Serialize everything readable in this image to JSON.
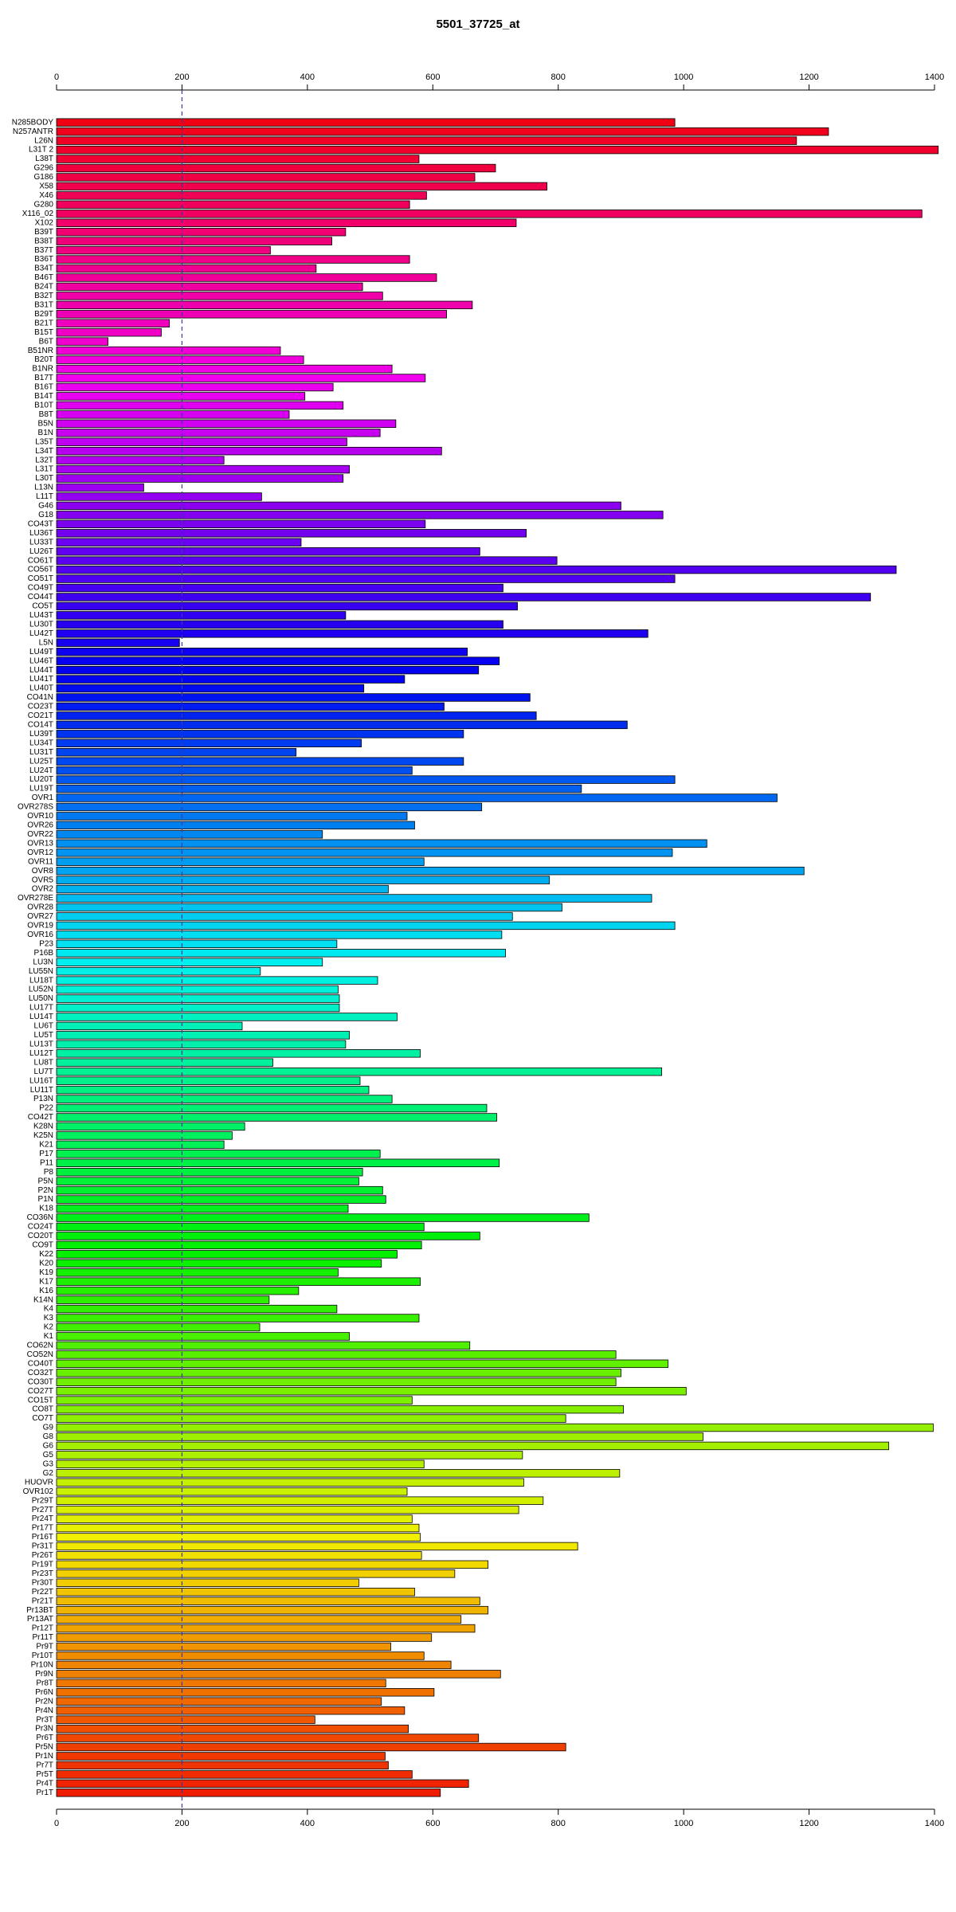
{
  "chart_data": {
    "type": "bar",
    "orientation": "horizontal",
    "title": "5501_37725_at",
    "categories": [
      "N285BODY",
      "N257ANTR",
      "L26N",
      "L31T 2",
      "L38T",
      "G296",
      "G186",
      "X58",
      "X46",
      "G280",
      "X116_02",
      "X102",
      "B39T",
      "B38T",
      "B37T",
      "B36T",
      "B34T",
      "B46T",
      "B24T",
      "B32T",
      "B31T",
      "B29T",
      "B21T",
      "B15T",
      "B6T",
      "B51NR",
      "B20T",
      "B1NR",
      "B17T",
      "B16T",
      "B14T",
      "B10T",
      "B8T",
      "B5N",
      "B1N",
      "L35T",
      "L34T",
      "L32T",
      "L31T",
      "L30T",
      "L13N",
      "L11T",
      "G46",
      "G18",
      "CO43T",
      "LU36T",
      "LU33T",
      "LU26T",
      "CO61T",
      "CO56T",
      "CO51T",
      "CO49T",
      "CO44T",
      "CO5T",
      "LU43T",
      "LU30T",
      "LU42T",
      "L5N",
      "LU49T",
      "LU46T",
      "LU44T",
      "LU41T",
      "LU40T",
      "CO41N",
      "CO23T",
      "CO21T",
      "CO14T",
      "LU39T",
      "LU34T",
      "LU31T",
      "LU25T",
      "LU24T",
      "LU20T",
      "LU19T",
      "OVR1",
      "OVR278S",
      "OVR10",
      "OVR26",
      "OVR22",
      "OVR13",
      "OVR12",
      "OVR11",
      "OVR8",
      "OVR5",
      "OVR2",
      "OVR278E",
      "OVR28",
      "OVR27",
      "OVR19",
      "OVR16",
      "P23",
      "P16B",
      "LU3N",
      "LU55N",
      "LU18T",
      "LU52N",
      "LU50N",
      "LU17T",
      "LU14T",
      "LU6T",
      "LU5T",
      "LU13T",
      "LU12T",
      "LU8T",
      "LU7T",
      "LU16T",
      "LU11T",
      "P13N",
      "P22",
      "CO42T",
      "K28N",
      "K25N",
      "K21",
      "P17",
      "P11",
      "P8",
      "P5N",
      "P2N",
      "P1N",
      "K18",
      "CO36N",
      "CO24T",
      "CO20T",
      "CO9T",
      "K22",
      "K20",
      "K19",
      "K17",
      "K16",
      "K14N",
      "K4",
      "K3",
      "K2",
      "K1",
      "CO62N",
      "CO52N",
      "CO40T",
      "CO32T",
      "CO30T",
      "CO27T",
      "CO15T",
      "CO8T",
      "CO7T",
      "G9",
      "G8",
      "G6",
      "G5",
      "G3",
      "G2",
      "HUOVR",
      "OVR102",
      "Pr29T",
      "Pr27T",
      "Pr24T",
      "Pr17T",
      "Pr16T",
      "Pr31T",
      "Pr26T",
      "Pr19T",
      "Pr23T",
      "Pr30T",
      "Pr22T",
      "Pr21T",
      "Pr13BT",
      "Pr13AT",
      "Pr12T",
      "Pr11T",
      "Pr9T",
      "Pr10T",
      "Pr10N",
      "Pr9N",
      "Pr8T",
      "Pr6N",
      "Pr2N",
      "Pr4N",
      "Pr3T",
      "Pr3N",
      "Pr6T",
      "Pr5N",
      "Pr1N",
      "Pr7T",
      "Pr5T",
      "Pr4T",
      "Pr1T"
    ],
    "values": [
      986,
      1231,
      1180,
      1406,
      578,
      700,
      667,
      782,
      590,
      563,
      1380,
      733,
      461,
      439,
      341,
      563,
      414,
      606,
      488,
      520,
      663,
      622,
      180,
      167,
      82,
      357,
      394,
      535,
      588,
      441,
      396,
      457,
      371,
      541,
      516,
      463,
      614,
      267,
      467,
      457,
      139,
      327,
      900,
      967,
      588,
      749,
      390,
      675,
      798,
      1339,
      986,
      712,
      1298,
      735,
      461,
      712,
      943,
      196,
      655,
      706,
      673,
      555,
      490,
      755,
      618,
      765,
      910,
      649,
      486,
      382,
      649,
      567,
      986,
      837,
      1149,
      678,
      559,
      571,
      424,
      1037,
      982,
      586,
      1192,
      786,
      529,
      949,
      806,
      727,
      986,
      710,
      447,
      716,
      424,
      325,
      512,
      449,
      451,
      451,
      543,
      296,
      467,
      461,
      580,
      345,
      965,
      484,
      498,
      535,
      686,
      702,
      300,
      280,
      267,
      516,
      706,
      488,
      482,
      520,
      525,
      465,
      849,
      586,
      675,
      582,
      543,
      518,
      449,
      580,
      386,
      339,
      447,
      578,
      324,
      467,
      659,
      892,
      975,
      900,
      892,
      1004,
      567,
      904,
      812,
      1398,
      1031,
      1327,
      743,
      586,
      898,
      745,
      559,
      776,
      737,
      567,
      578,
      580,
      831,
      582,
      688,
      635,
      482,
      571,
      675,
      688,
      645,
      667,
      598,
      533,
      586,
      629,
      708,
      525,
      602,
      518,
      555,
      412,
      561,
      673,
      812,
      524,
      529,
      567,
      657,
      612
    ],
    "colors": [
      "hsl(355,100%,47%)",
      "hsl(353,100%,47%)",
      "hsl(351,100%,47%)",
      "hsl(349,100%,47%)",
      "hsl(347,100%,47%)",
      "hsl(345,100%,47%)",
      "hsl(343,100%,47%)",
      "hsl(341,100%,47%)",
      "hsl(339,100%,47%)",
      "hsl(337,100%,47%)",
      "hsl(336,100%,47%)",
      "hsl(334,100%,47%)",
      "hsl(332,100%,47%)",
      "hsl(330,100%,47%)",
      "hsl(328,100%,47%)",
      "hsl(326,100%,47%)",
      "hsl(324,100%,47%)",
      "hsl(322,100%,47%)",
      "hsl(320,100%,47%)",
      "hsl(318,100%,47%)",
      "hsl(317,100%,47%)",
      "hsl(315,100%,47%)",
      "hsl(313,100%,47%)",
      "hsl(311,100%,47%)",
      "hsl(309,100%,47%)",
      "hsl(307,100%,47%)",
      "hsl(305,100%,47%)",
      "hsl(303,100%,47%)",
      "hsl(301,100%,47%)",
      "hsl(299,100%,47%)",
      "hsl(298,100%,47%)",
      "hsl(296,100%,47%)",
      "hsl(294,100%,47%)",
      "hsl(292,100%,47%)",
      "hsl(290,100%,47%)",
      "hsl(288,100%,47%)",
      "hsl(286,100%,47%)",
      "hsl(284,100%,47%)",
      "hsl(282,100%,47%)",
      "hsl(280,100%,47%)",
      "hsl(279,100%,47%)",
      "hsl(277,100%,47%)",
      "hsl(275,100%,47%)",
      "hsl(273,100%,47%)",
      "hsl(271,100%,47%)",
      "hsl(269,100%,47%)",
      "hsl(267,100%,47%)",
      "hsl(265,100%,47%)",
      "hsl(263,100%,47%)",
      "hsl(261,100%,47%)",
      "hsl(260,100%,47%)",
      "hsl(258,100%,47%)",
      "hsl(256,100%,47%)",
      "hsl(254,100%,47%)",
      "hsl(252,100%,47%)",
      "hsl(250,100%,47%)",
      "hsl(248,100%,47%)",
      "hsl(246,100%,47%)",
      "hsl(244,100%,47%)",
      "hsl(242,100%,47%)",
      "hsl(241,100%,47%)",
      "hsl(239,100%,47%)",
      "hsl(237,100%,47%)",
      "hsl(235,100%,47%)",
      "hsl(233,100%,47%)",
      "hsl(231,100%,47%)",
      "hsl(229,100%,47%)",
      "hsl(227,100%,47%)",
      "hsl(225,100%,47%)",
      "hsl(223,100%,47%)",
      "hsl(222,100%,47%)",
      "hsl(220,100%,47%)",
      "hsl(218,100%,47%)",
      "hsl(216,100%,47%)",
      "hsl(214,100%,47%)",
      "hsl(212,100%,47%)",
      "hsl(210,100%,47%)",
      "hsl(208,100%,47%)",
      "hsl(206,100%,47%)",
      "hsl(204,100%,47%)",
      "hsl(203,100%,47%)",
      "hsl(201,100%,47%)",
      "hsl(199,100%,47%)",
      "hsl(197,100%,47%)",
      "hsl(195,100%,47%)",
      "hsl(193,100%,47%)",
      "hsl(191,100%,47%)",
      "hsl(189,100%,47%)",
      "hsl(187,100%,47%)",
      "hsl(185,100%,47%)",
      "hsl(184,100%,47%)",
      "hsl(182,100%,47%)",
      "hsl(180,100%,47%)",
      "hsl(178,100%,47%)",
      "hsl(176,100%,47%)",
      "hsl(174,100%,47%)",
      "hsl(172,100%,47%)",
      "hsl(170,100%,47%)",
      "hsl(168,100%,47%)",
      "hsl(166,100%,47%)",
      "hsl(165,100%,47%)",
      "hsl(163,100%,47%)",
      "hsl(161,100%,47%)",
      "hsl(159,100%,47%)",
      "hsl(157,100%,47%)",
      "hsl(155,100%,47%)",
      "hsl(153,100%,47%)",
      "hsl(151,100%,47%)",
      "hsl(149,100%,47%)",
      "hsl(147,100%,47%)",
      "hsl(146,100%,47%)",
      "hsl(144,100%,47%)",
      "hsl(142,100%,47%)",
      "hsl(140,100%,47%)",
      "hsl(138,100%,47%)",
      "hsl(136,100%,47%)",
      "hsl(134,100%,47%)",
      "hsl(132,100%,47%)",
      "hsl(130,100%,47%)",
      "hsl(128,100%,47%)",
      "hsl(127,100%,47%)",
      "hsl(125,100%,47%)",
      "hsl(123,100%,47%)",
      "hsl(121,100%,47%)",
      "hsl(119,100%,47%)",
      "hsl(117,100%,47%)",
      "hsl(115,100%,47%)",
      "hsl(113,100%,47%)",
      "hsl(111,100%,47%)",
      "hsl(109,100%,47%)",
      "hsl(108,100%,47%)",
      "hsl(106,100%,47%)",
      "hsl(104,100%,47%)",
      "hsl(102,100%,47%)",
      "hsl(100,100%,47%)",
      "hsl(98,100%,47%)",
      "hsl(96,100%,47%)",
      "hsl(94,100%,47%)",
      "hsl(92,100%,47%)",
      "hsl(90,100%,47%)",
      "hsl(89,100%,47%)",
      "hsl(87,100%,47%)",
      "hsl(85,100%,47%)",
      "hsl(83,100%,47%)",
      "hsl(81,100%,47%)",
      "hsl(79,100%,47%)",
      "hsl(77,100%,47%)",
      "hsl(75,100%,47%)",
      "hsl(73,100%,47%)",
      "hsl(71,100%,47%)",
      "hsl(70,100%,47%)",
      "hsl(68,100%,47%)",
      "hsl(66,100%,47%)",
      "hsl(64,100%,47%)",
      "hsl(62,100%,47%)",
      "hsl(60,100%,47%)",
      "hsl(58,100%,47%)",
      "hsl(56,100%,47%)",
      "hsl(54,100%,47%)",
      "hsl(52,100%,47%)",
      "hsl(51,100%,47%)",
      "hsl(49,100%,47%)",
      "hsl(47,100%,47%)",
      "hsl(45,100%,47%)",
      "hsl(43,100%,47%)",
      "hsl(41,100%,47%)",
      "hsl(39,100%,47%)",
      "hsl(37,100%,47%)",
      "hsl(35,100%,47%)",
      "hsl(33,100%,47%)",
      "hsl(32,100%,47%)",
      "hsl(30,100%,47%)",
      "hsl(28,100%,47%)",
      "hsl(26,100%,47%)",
      "hsl(24,100%,47%)",
      "hsl(22,100%,47%)",
      "hsl(20,100%,47%)",
      "hsl(18,100%,47%)",
      "hsl(16,100%,47%)",
      "hsl(14,100%,47%)",
      "hsl(13,100%,47%)",
      "hsl(11,100%,47%)",
      "hsl(9,100%,47%)",
      "hsl(7,100%,47%)"
    ],
    "xlim": [
      0,
      1400
    ],
    "xticks": [
      0,
      200,
      400,
      600,
      800,
      1000,
      1200,
      1400
    ],
    "reference_x": 200,
    "reference_color": "#3a3aa0"
  }
}
